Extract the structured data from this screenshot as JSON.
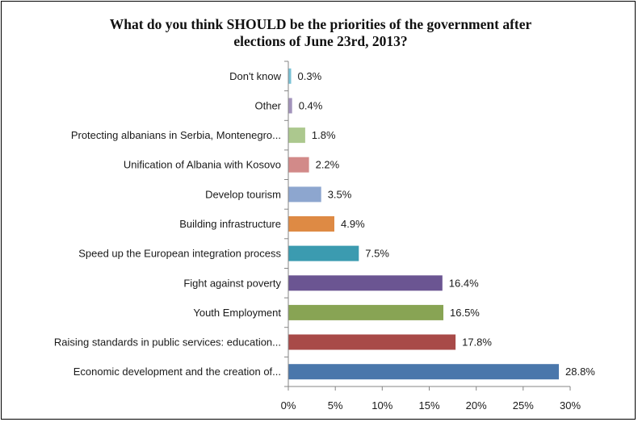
{
  "chart_data": {
    "type": "bar",
    "orientation": "horizontal",
    "title": "What do you think SHOULD be the priorities of the government after elections of June 23rd, 2013?",
    "title_lines": [
      "What do you think SHOULD be the priorities of the government after",
      "elections of June 23rd, 2013?"
    ],
    "categories": [
      "Economic development and the creation of...",
      "Raising standards in public services: education...",
      "Youth Employment",
      "Fight against  poverty",
      "Speed up the  European integration process",
      "Building infrastructure",
      "Develop tourism",
      "Unification of Albania with Kosovo",
      "Protecting albanians  in Serbia, Montenegro...",
      "Other",
      "Don't know"
    ],
    "values": [
      28.8,
      17.8,
      16.5,
      16.4,
      7.5,
      4.9,
      3.5,
      2.2,
      1.8,
      0.4,
      0.3
    ],
    "value_labels": [
      "28.8%",
      "17.8%",
      "16.5%",
      "16.4%",
      "7.5%",
      "4.9%",
      "3.5%",
      "2.2%",
      "1.8%",
      "0.4%",
      "0.3%"
    ],
    "colors": [
      "#4a77ab",
      "#a84a48",
      "#88a454",
      "#6b5592",
      "#3b9bb0",
      "#de8a44",
      "#8da6cf",
      "#d28a89",
      "#acc88e",
      "#a293bb",
      "#79c2d6"
    ],
    "xlim": [
      0,
      30
    ],
    "xticks": [
      "0%",
      "5%",
      "10%",
      "15%",
      "20%",
      "25%",
      "30%"
    ],
    "xlabel": "",
    "ylabel": "",
    "grid": false,
    "legend": "none"
  }
}
